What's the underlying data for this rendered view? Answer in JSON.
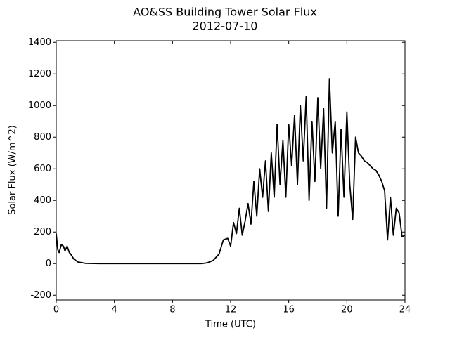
{
  "chart_data": {
    "type": "line",
    "title": "AO&SS Building Tower Solar Flux",
    "subtitle": "2012-07-10",
    "xlabel": "Time (UTC)",
    "ylabel": "Solar Flux (W/m^2)",
    "color": "#000000",
    "xlim": [
      0,
      24
    ],
    "xticks": [
      0,
      4,
      8,
      12,
      16,
      20,
      24
    ],
    "ylim": [
      -230,
      1410
    ],
    "yticks": [
      -200,
      0,
      200,
      400,
      600,
      800,
      1000,
      1200,
      1400
    ],
    "x": [
      0,
      0.1,
      0.2,
      0.35,
      0.5,
      0.6,
      0.75,
      0.9,
      1.0,
      1.2,
      1.5,
      2,
      3,
      4,
      5,
      6,
      7,
      8,
      9,
      10,
      10.4,
      10.8,
      11.2,
      11.5,
      11.8,
      12.0,
      12.2,
      12.4,
      12.6,
      12.8,
      13.0,
      13.2,
      13.4,
      13.6,
      13.8,
      14.0,
      14.2,
      14.4,
      14.6,
      14.8,
      15.0,
      15.2,
      15.4,
      15.6,
      15.8,
      16.0,
      16.2,
      16.4,
      16.6,
      16.8,
      17.0,
      17.2,
      17.4,
      17.6,
      17.8,
      18.0,
      18.2,
      18.4,
      18.6,
      18.8,
      19.0,
      19.2,
      19.4,
      19.6,
      19.8,
      20.0,
      20.2,
      20.4,
      20.6,
      20.8,
      21.0,
      21.2,
      21.4,
      21.6,
      21.8,
      22.0,
      22.2,
      22.4,
      22.6,
      22.8,
      23.0,
      23.2,
      23.4,
      23.6,
      23.8,
      24.0
    ],
    "values": [
      190,
      90,
      70,
      120,
      110,
      80,
      110,
      70,
      60,
      30,
      10,
      2,
      0,
      0,
      0,
      0,
      0,
      0,
      0,
      0,
      5,
      20,
      60,
      150,
      160,
      110,
      260,
      190,
      350,
      180,
      270,
      380,
      250,
      520,
      300,
      600,
      420,
      650,
      330,
      700,
      420,
      880,
      500,
      780,
      420,
      880,
      620,
      940,
      500,
      1000,
      650,
      1060,
      400,
      900,
      520,
      1050,
      600,
      980,
      350,
      1170,
      700,
      900,
      300,
      850,
      420,
      960,
      500,
      280,
      800,
      700,
      680,
      650,
      640,
      620,
      600,
      590,
      560,
      520,
      460,
      150,
      420,
      180,
      350,
      320,
      170,
      180
    ]
  }
}
